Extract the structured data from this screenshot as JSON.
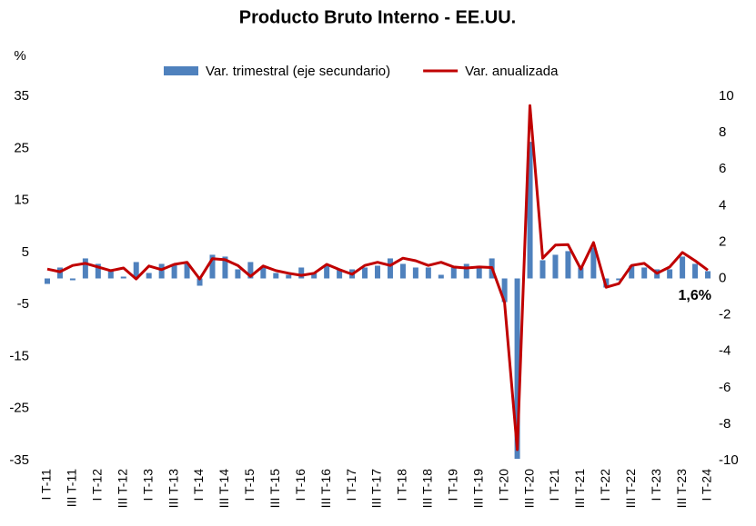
{
  "chart_data": {
    "type": "bar_line",
    "title": "Producto Bruto Interno - EE.UU.",
    "y_label": "%",
    "annotation": "1,6%",
    "categories": [
      "I T-11",
      null,
      "III T-11",
      null,
      "I T-12",
      null,
      "III T-12",
      null,
      "I T-13",
      null,
      "III T-13",
      null,
      "I T-14",
      null,
      "III T-14",
      null,
      "I T-15",
      null,
      "III T-15",
      null,
      "I T-16",
      null,
      "III T-16",
      null,
      "I T-17",
      null,
      "III T-17",
      null,
      "I T-18",
      null,
      "III T-18",
      null,
      "I T-19",
      null,
      "III T-19",
      null,
      "I T-20",
      null,
      "III T-20",
      null,
      "I T-21",
      null,
      "III T-21",
      null,
      "I T-22",
      null,
      "III T-22",
      null,
      "I T-23",
      null,
      "III T-23",
      null,
      "I T-24"
    ],
    "series": [
      {
        "name": "Var. trimestral (eje secundario)",
        "type": "bar",
        "axis": "y2",
        "color": "#4f81bd",
        "values": [
          -0.3,
          0.6,
          -0.1,
          1.1,
          0.8,
          0.4,
          0.1,
          0.9,
          0.3,
          0.8,
          0.8,
          0.8,
          -0.4,
          1.3,
          1.2,
          0.5,
          0.9,
          0.6,
          0.3,
          0.2,
          0.6,
          0.3,
          0.7,
          0.5,
          0.5,
          0.6,
          0.7,
          1.1,
          0.8,
          0.6,
          0.6,
          0.2,
          0.6,
          0.8,
          0.7,
          1.1,
          -1.3,
          -9.9,
          7.5,
          1.0,
          1.3,
          1.5,
          0.6,
          1.7,
          -0.5,
          -0.1,
          0.7,
          0.6,
          0.5,
          0.5,
          1.2,
          0.8,
          0.4
        ]
      },
      {
        "name": "Var. anualizada",
        "type": "line",
        "color": "#c00000",
        "values": [
          1.8,
          1.3,
          2.5,
          2.9,
          2.2,
          1.5,
          2.0,
          -0.1,
          2.4,
          1.7,
          2.7,
          3.1,
          -0.1,
          3.8,
          3.6,
          2.5,
          0.4,
          2.4,
          1.5,
          1.0,
          0.6,
          1.0,
          2.7,
          1.7,
          0.8,
          2.5,
          3.1,
          2.5,
          3.9,
          3.4,
          2.5,
          3.1,
          2.2,
          2.0,
          2.2,
          2.1,
          -4.6,
          -32.9,
          33.2,
          3.9,
          6.4,
          6.5,
          1.8,
          6.9,
          -1.7,
          -1.0,
          2.5,
          2.9,
          1.0,
          2.2,
          5.0,
          3.4,
          1.6
        ]
      }
    ],
    "ylim": [
      -35,
      35
    ],
    "yticks": [
      35,
      25,
      15,
      5,
      -5,
      -15,
      -25,
      -35
    ],
    "y2lim": [
      -10,
      10
    ],
    "y2ticks": [
      10,
      8,
      6,
      4,
      2,
      0,
      -2,
      -4,
      -6,
      -8,
      -10
    ],
    "legend": "top",
    "grid": false
  }
}
